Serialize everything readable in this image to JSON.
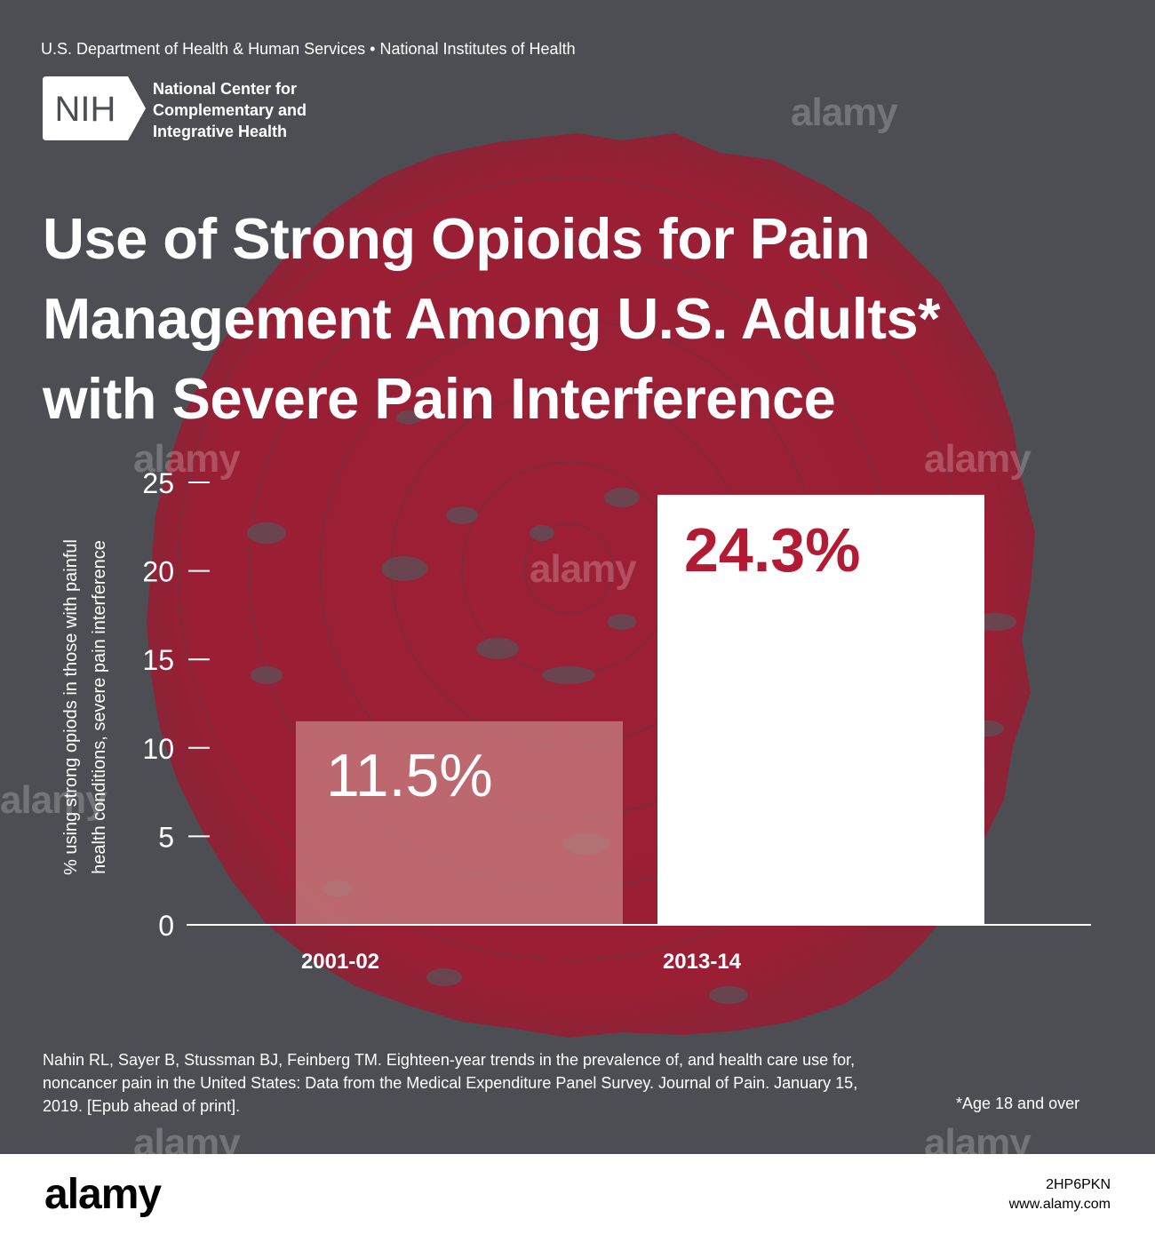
{
  "header": {
    "agency": "U.S. Department of Health & Human Services • National Institutes of Health",
    "logo_text": "NIH",
    "center_lines": [
      "National Center for",
      "Complementary and",
      "Integrative Health"
    ]
  },
  "title_lines": [
    "Use of Strong Opioids for Pain",
    "Management Among U.S. Adults*",
    "with Severe Pain Interference"
  ],
  "chart_data": {
    "type": "bar",
    "categories": [
      "2001-02",
      "2013-14"
    ],
    "values": [
      11.5,
      24.3
    ],
    "data_labels": [
      "11.5%",
      "24.3%"
    ],
    "ylabel_lines": [
      "% using strong opiods in those with painful",
      "health conditions, severe pain interference"
    ],
    "ylim": [
      0,
      25
    ],
    "yticks": [
      0,
      5,
      10,
      15,
      20,
      25
    ],
    "grid": false,
    "colors": {
      "bar_2001_02": "#c67e80",
      "bar_2013_14": "#ffffff",
      "label_2001_02": "#ffffff",
      "label_2013_14": "#b31b34"
    }
  },
  "footer_note": {
    "citation": "Nahin RL, Sayer B, Stussman BJ, Feinberg TM. Eighteen-year trends in the prevalence of, and health care use for, noncancer pain in the United States: Data from the Medical Expenditure Panel Survey. Journal of Pain. January 15, 2019. [Epub ahead of print].",
    "age_note": "*Age 18 and over"
  },
  "watermark": {
    "text": "alamy",
    "image_id": "2HP6PKN",
    "url": "www.alamy.com"
  },
  "colors": {
    "background": "#4c4e53",
    "accent_red": "#9c1f35",
    "text": "#ffffff"
  }
}
